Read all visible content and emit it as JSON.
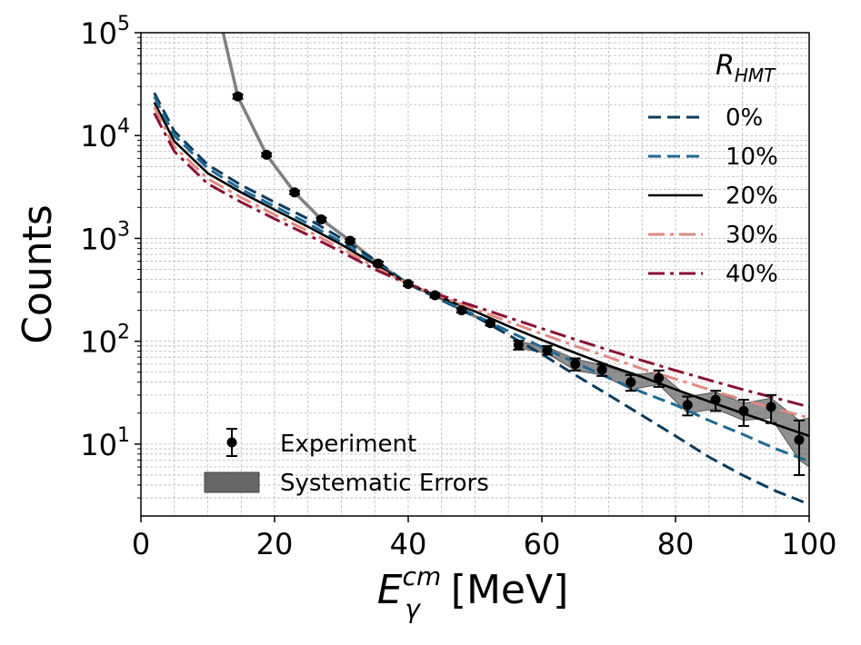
{
  "chart_data": {
    "type": "line",
    "title": "",
    "xlabel": {
      "main": "E",
      "sup": "cm",
      "sub": "γ",
      "unit": "[MeV]"
    },
    "ylabel": "Counts",
    "xlim": [
      0,
      100
    ],
    "ylim": [
      2,
      100000
    ],
    "yscale": "log",
    "grid": true,
    "x_ticks": [
      0,
      20,
      40,
      60,
      80,
      100
    ],
    "x_tick_labels": [
      "0",
      "20",
      "40",
      "60",
      "80",
      "100"
    ],
    "y_ticks": [
      10,
      100,
      1000,
      10000,
      100000
    ],
    "y_tick_labels": [
      {
        "base": "10",
        "exp": "1"
      },
      {
        "base": "10",
        "exp": "2"
      },
      {
        "base": "10",
        "exp": "3"
      },
      {
        "base": "10",
        "exp": "4"
      },
      {
        "base": "10",
        "exp": "5"
      }
    ],
    "legend_title": {
      "main": "R",
      "sub": "HMT"
    },
    "legend_position": "top-right",
    "bottom_legend_position": "bottom-left",
    "series": [
      {
        "name": "0%",
        "color": "#0d3b5e",
        "dash": "dashed",
        "x": [
          2,
          5,
          10,
          15,
          20,
          25,
          30,
          35,
          40,
          45,
          50,
          55,
          60,
          65,
          70,
          75,
          80,
          85,
          90,
          95,
          100
        ],
        "y": [
          26000,
          11000,
          5200,
          3300,
          2250,
          1550,
          1000,
          620,
          360,
          250,
          175,
          115,
          75,
          47,
          30,
          19,
          12,
          7.5,
          5,
          3.5,
          2.6
        ]
      },
      {
        "name": "10%",
        "color": "#1f6a96",
        "dash": "dashed",
        "x": [
          2,
          5,
          10,
          15,
          20,
          25,
          30,
          35,
          40,
          45,
          50,
          55,
          60,
          65,
          70,
          75,
          80,
          85,
          90,
          95,
          100
        ],
        "y": [
          24000,
          10000,
          4800,
          3000,
          2050,
          1400,
          920,
          580,
          360,
          255,
          180,
          125,
          88,
          62,
          44,
          32,
          24,
          17,
          12.5,
          9,
          6.8
        ]
      },
      {
        "name": "20%",
        "color": "#000000",
        "dash": "solid",
        "x": [
          2,
          5,
          10,
          15,
          20,
          25,
          30,
          35,
          40,
          45,
          50,
          55,
          60,
          65,
          70,
          75,
          80,
          85,
          90,
          95,
          100
        ],
        "y": [
          21000,
          8800,
          4300,
          2800,
          1900,
          1300,
          870,
          560,
          360,
          265,
          195,
          140,
          103,
          77,
          58,
          45,
          34,
          26,
          20,
          15.5,
          12
        ]
      },
      {
        "name": "30%",
        "color": "#e08a80",
        "dash": "dashdot",
        "x": [
          2,
          5,
          10,
          15,
          20,
          25,
          30,
          35,
          40,
          45,
          50,
          55,
          60,
          65,
          70,
          75,
          80,
          85,
          90,
          95,
          100
        ],
        "y": [
          19000,
          7800,
          3800,
          2500,
          1700,
          1180,
          800,
          530,
          360,
          270,
          205,
          155,
          118,
          90,
          70,
          54,
          43,
          34,
          27,
          22,
          18
        ]
      },
      {
        "name": "40%",
        "color": "#8a1233",
        "dash": "dashdot",
        "x": [
          2,
          5,
          10,
          15,
          20,
          25,
          30,
          35,
          40,
          45,
          50,
          55,
          60,
          65,
          70,
          75,
          80,
          85,
          90,
          95,
          100
        ],
        "y": [
          16500,
          7000,
          3400,
          2250,
          1550,
          1080,
          740,
          500,
          360,
          278,
          218,
          170,
          133,
          104,
          82,
          65,
          52,
          42,
          34,
          28,
          23
        ]
      }
    ],
    "experiment": {
      "name": "Experiment",
      "x": [
        14.5,
        18.8,
        23,
        27,
        31.3,
        35.5,
        40,
        44,
        48,
        52.3,
        56.5,
        60.8,
        65,
        69,
        73.3,
        77.5,
        81.8,
        86,
        90.2,
        94.3,
        98.5
      ],
      "y": [
        24000,
        6500,
        2800,
        1530,
        950,
        570,
        360,
        280,
        200,
        150,
        92,
        82,
        60,
        53,
        40,
        44,
        24,
        27,
        21,
        23,
        11
      ],
      "yerr_low": [
        1200,
        250,
        110,
        60,
        35,
        25,
        15,
        14,
        10,
        8,
        9,
        8,
        8,
        7,
        7,
        8,
        5,
        6,
        6,
        7,
        6
      ],
      "yerr_high": [
        1200,
        250,
        110,
        60,
        35,
        25,
        15,
        14,
        10,
        8,
        9,
        8,
        8,
        7,
        7,
        8,
        5,
        6,
        6,
        7,
        6
      ]
    },
    "experiment_trend": {
      "color": "#808080",
      "x": [
        12.3,
        14.5,
        18.8,
        23,
        27,
        31.3,
        35.5,
        40,
        44,
        48,
        52.3
      ],
      "y": [
        100000,
        24000,
        6500,
        2800,
        1530,
        950,
        570,
        360,
        280,
        200,
        150
      ]
    },
    "systematic_errors": {
      "name": "Systematic Errors",
      "color": "#555555",
      "x": [
        56.5,
        60.8,
        65,
        69,
        73.3,
        77.5,
        81.8,
        86,
        90.2,
        94.3,
        98.5,
        100
      ],
      "upper": [
        100,
        88,
        67,
        59,
        47,
        50,
        29,
        32,
        25,
        28,
        17,
        18
      ],
      "lower": [
        86,
        76,
        52,
        47,
        34,
        38,
        20,
        22,
        17,
        18,
        7,
        6
      ]
    }
  }
}
